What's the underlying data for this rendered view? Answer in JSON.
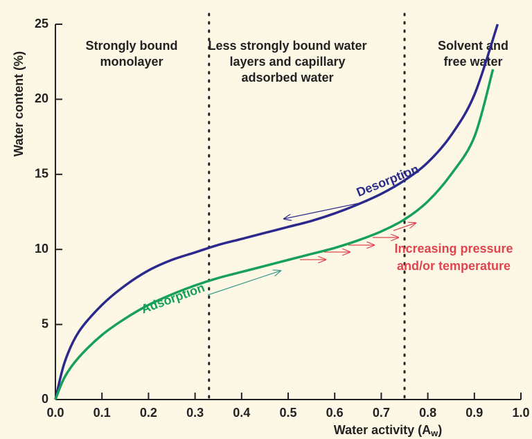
{
  "chart_data": {
    "type": "line",
    "x_label": {
      "text": "Water activity (A",
      "subscript": "w",
      "suffix": ")"
    },
    "y_label": "Water content (%)",
    "xlim": [
      0,
      1
    ],
    "ylim": [
      0,
      25
    ],
    "xticks": [
      {
        "value": 0,
        "label": "0.0"
      },
      0.1,
      0.2,
      0.3,
      0.4,
      0.5,
      0.6,
      0.7,
      0.8,
      0.9,
      {
        "value": 1,
        "label": "1.0"
      }
    ],
    "yticks": [
      0,
      5,
      10,
      15,
      20,
      25
    ],
    "boundaries": [
      0.33,
      0.75
    ],
    "regions": [
      {
        "lines": [
          "Strongly bound",
          "monolayer"
        ]
      },
      {
        "lines": [
          "Less strongly bound water",
          "layers and capillary",
          "adsorbed water"
        ]
      },
      {
        "lines": [
          "Solvent and",
          "free water"
        ]
      }
    ],
    "series": [
      {
        "name": "Desorption",
        "color": "#2b2a8c",
        "x": [
          0,
          0.02,
          0.05,
          0.1,
          0.15,
          0.2,
          0.25,
          0.3,
          0.35,
          0.4,
          0.45,
          0.5,
          0.55,
          0.6,
          0.65,
          0.7,
          0.75,
          0.8,
          0.85,
          0.9,
          0.95
        ],
        "values": [
          0,
          2.5,
          4.5,
          6.3,
          7.6,
          8.6,
          9.3,
          9.8,
          10.3,
          10.7,
          11.1,
          11.5,
          11.9,
          12.4,
          13.0,
          13.7,
          14.6,
          15.8,
          17.6,
          20.3,
          25
        ]
      },
      {
        "name": "Adsorption",
        "color": "#16a05a",
        "x": [
          0,
          0.02,
          0.05,
          0.1,
          0.15,
          0.2,
          0.25,
          0.3,
          0.35,
          0.4,
          0.45,
          0.5,
          0.55,
          0.6,
          0.65,
          0.7,
          0.75,
          0.8,
          0.85,
          0.9,
          0.94
        ],
        "values": [
          0,
          1.5,
          2.8,
          4.3,
          5.4,
          6.3,
          7.0,
          7.6,
          8.1,
          8.5,
          8.9,
          9.3,
          9.7,
          10.1,
          10.6,
          11.2,
          12.0,
          13.2,
          15.0,
          17.5,
          22.0
        ]
      }
    ],
    "annotation": {
      "lines": [
        "Increasing pressure",
        "and/or temperature"
      ],
      "color": "#e0454f"
    }
  }
}
